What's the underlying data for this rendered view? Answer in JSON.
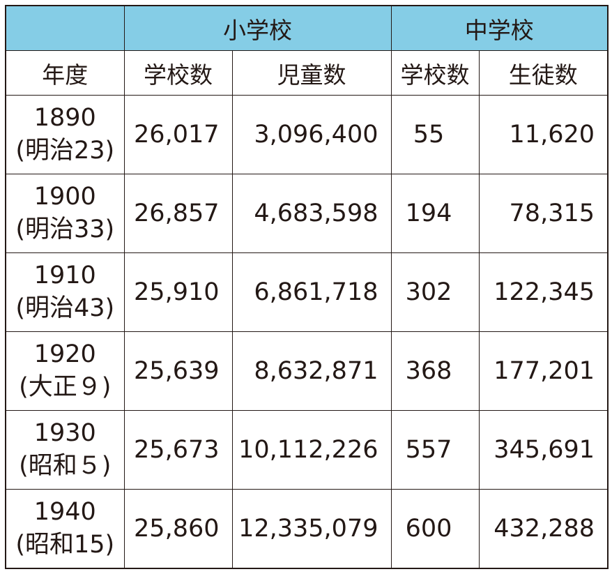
{
  "groups": {
    "elementary": "小学校",
    "middle": "中学校"
  },
  "headers": {
    "year": "年度",
    "elem_schools": "学校数",
    "elem_pupils": "児童数",
    "mid_schools": "学校数",
    "mid_students": "生徒数"
  },
  "rows": [
    {
      "year": "1890",
      "era": "(明治23)",
      "elem_schools": "26,017",
      "elem_pupils": "3,096,400",
      "mid_schools": "55",
      "mid_students": "11,620"
    },
    {
      "year": "1900",
      "era": "(明治33)",
      "elem_schools": "26,857",
      "elem_pupils": "4,683,598",
      "mid_schools": "194",
      "mid_students": "78,315"
    },
    {
      "year": "1910",
      "era": "(明治43)",
      "elem_schools": "25,910",
      "elem_pupils": "6,861,718",
      "mid_schools": "302",
      "mid_students": "122,345"
    },
    {
      "year": "1920",
      "era": "(大正９)",
      "elem_schools": "25,639",
      "elem_pupils": "8,632,871",
      "mid_schools": "368",
      "mid_students": "177,201"
    },
    {
      "year": "1930",
      "era": "(昭和５)",
      "elem_schools": "25,673",
      "elem_pupils": "10,112,226",
      "mid_schools": "557",
      "mid_students": "345,691"
    },
    {
      "year": "1940",
      "era": "(昭和15)",
      "elem_schools": "25,860",
      "elem_pupils": "12,335,079",
      "mid_schools": "600",
      "mid_students": "432,288"
    }
  ],
  "colors": {
    "header_band": "#85cde6",
    "text": "#231815"
  }
}
